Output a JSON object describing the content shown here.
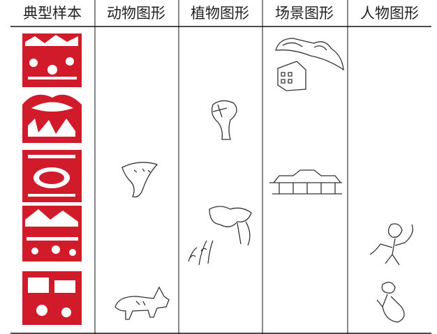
{
  "table": {
    "headers": [
      "典型样本",
      "动物图形",
      "植物图形",
      "场景图形",
      "人物图形"
    ]
  }
}
